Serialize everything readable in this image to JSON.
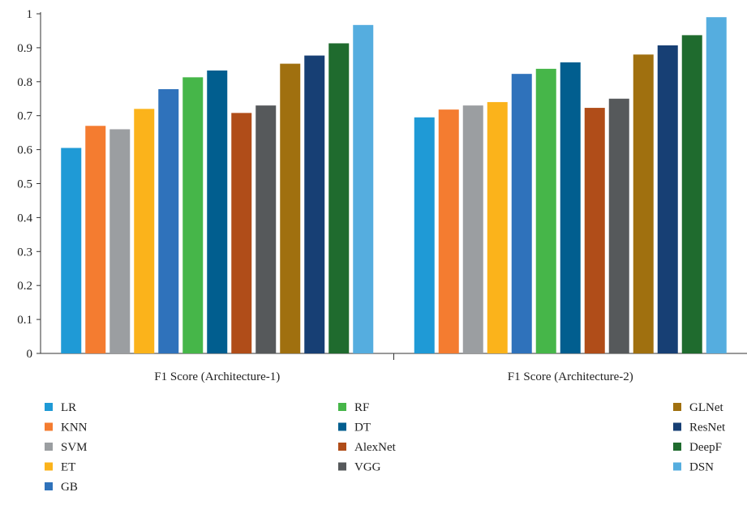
{
  "chart_data": {
    "type": "bar",
    "title": "",
    "xlabel": "",
    "ylabel": "",
    "ylim": [
      0,
      1
    ],
    "yticks": [
      "0",
      "0.1",
      "0.2",
      "0.3",
      "0.4",
      "0.5",
      "0.6",
      "0.7",
      "0.8",
      "0.9",
      "1"
    ],
    "grid": false,
    "legend_position": "bottom",
    "categories": [
      "F1 Score (Architecture-1)",
      "F1 Score (Architecture-2)"
    ],
    "series": [
      {
        "name": "LR",
        "color": "#1f9ad6",
        "values": [
          0.605,
          0.695
        ]
      },
      {
        "name": "KNN",
        "color": "#f47c30",
        "values": [
          0.67,
          0.718
        ]
      },
      {
        "name": "SVM",
        "color": "#9b9ea1",
        "values": [
          0.66,
          0.73
        ]
      },
      {
        "name": "ET",
        "color": "#fbb31b",
        "values": [
          0.72,
          0.74
        ]
      },
      {
        "name": "GB",
        "color": "#2f72bb",
        "values": [
          0.778,
          0.823
        ]
      },
      {
        "name": "RF",
        "color": "#46b649",
        "values": [
          0.813,
          0.838
        ]
      },
      {
        "name": "DT",
        "color": "#015e8f",
        "values": [
          0.833,
          0.857
        ]
      },
      {
        "name": "AlexNet",
        "color": "#b04d19",
        "values": [
          0.708,
          0.723
        ]
      },
      {
        "name": "VGG",
        "color": "#56595b",
        "values": [
          0.73,
          0.75
        ]
      },
      {
        "name": "GLNet",
        "color": "#a0700f",
        "values": [
          0.853,
          0.88
        ]
      },
      {
        "name": "ResNet",
        "color": "#173f74",
        "values": [
          0.877,
          0.907
        ]
      },
      {
        "name": "DeepF",
        "color": "#1f6b2e",
        "values": [
          0.913,
          0.937
        ]
      },
      {
        "name": "DSN",
        "color": "#55addf",
        "values": [
          0.967,
          0.99
        ]
      }
    ]
  }
}
